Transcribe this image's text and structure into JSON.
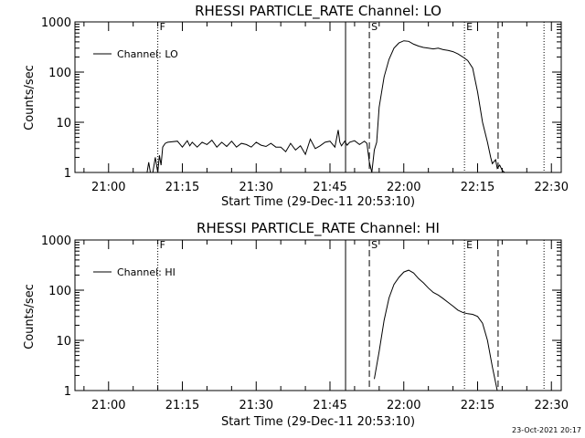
{
  "footer": {
    "timestamp": "23-Oct-2021 20:17"
  },
  "colors": {
    "line": "#000000",
    "background": "#ffffff"
  },
  "chart_data": [
    {
      "type": "line",
      "title": "RHESSI PARTICLE_RATE Channel: LO",
      "xlabel": "Start Time (29-Dec-11 20:53:10)",
      "ylabel": "Counts/sec",
      "y_scale": "log",
      "ylim": [
        1,
        1000
      ],
      "xlim": [
        "20:53:10",
        "22:32:00"
      ],
      "x_ticks": [
        "21:00",
        "21:15",
        "21:30",
        "21:45",
        "22:00",
        "22:15",
        "22:30"
      ],
      "y_ticks": [
        "1",
        "10",
        "100",
        "1000"
      ],
      "legend": {
        "position": "top-left",
        "entries": [
          "Channel: LO"
        ]
      },
      "grid": false,
      "markers": [
        {
          "label": "F",
          "time": "21:10:00",
          "style": "dotted"
        },
        {
          "label": "",
          "time": "21:48:10",
          "style": "solid"
        },
        {
          "label": "S",
          "time": "21:53:00",
          "style": "dashed"
        },
        {
          "label": "E",
          "time": "22:12:20",
          "style": "dotted"
        },
        {
          "label": "",
          "time": "22:19:10",
          "style": "dashed"
        },
        {
          "label": "",
          "time": "22:28:30",
          "style": "dotted"
        }
      ],
      "series": [
        {
          "name": "Channel: LO",
          "x": [
            "21:07:50",
            "21:08:10",
            "21:08:30",
            "21:09:00",
            "21:09:30",
            "21:10:00",
            "21:10:20",
            "21:10:40",
            "21:11:00",
            "21:11:30",
            "21:12:00",
            "21:14:00",
            "21:15:00",
            "21:16:00",
            "21:16:30",
            "21:17:00",
            "21:18:00",
            "21:19:00",
            "21:20:00",
            "21:21:00",
            "21:22:00",
            "21:23:00",
            "21:24:00",
            "21:25:00",
            "21:26:00",
            "21:27:00",
            "21:28:00",
            "21:29:00",
            "21:30:00",
            "21:31:00",
            "21:32:00",
            "21:33:00",
            "21:34:00",
            "21:35:00",
            "21:36:00",
            "21:37:00",
            "21:38:00",
            "21:39:00",
            "21:40:00",
            "21:41:00",
            "21:42:00",
            "21:43:00",
            "21:44:00",
            "21:45:00",
            "21:46:00",
            "21:46:40",
            "21:47:00",
            "21:47:20",
            "21:48:00",
            "21:48:30",
            "21:49:00",
            "21:50:00",
            "21:51:00",
            "21:52:00",
            "21:52:30",
            "21:53:00",
            "21:53:30",
            "21:54:00",
            "21:54:30",
            "21:55:00",
            "21:56:00",
            "21:57:00",
            "21:58:00",
            "21:59:00",
            "22:00:00",
            "22:01:00",
            "22:02:00",
            "22:03:00",
            "22:04:00",
            "22:05:00",
            "22:06:00",
            "22:07:00",
            "22:08:00",
            "22:09:00",
            "22:10:00",
            "22:11:00",
            "22:12:00",
            "22:13:00",
            "22:14:00",
            "22:15:00",
            "22:16:00",
            "22:17:00",
            "22:17:40",
            "22:18:00",
            "22:18:40",
            "22:19:00",
            "22:19:30",
            "22:20:00",
            "22:20:30"
          ],
          "y": [
            1,
            1.6,
            1,
            1,
            2.0,
            1,
            2.2,
            1.4,
            3.2,
            3.8,
            4,
            4.2,
            3.2,
            4.3,
            3.4,
            4,
            3.2,
            4,
            3.6,
            4.4,
            3.2,
            4,
            3.3,
            4.2,
            3.2,
            3.8,
            3.6,
            3.2,
            4,
            3.5,
            3.3,
            3.8,
            3.2,
            3.2,
            2.6,
            3.8,
            2.8,
            3.4,
            2.3,
            4.6,
            3.0,
            3.4,
            4.0,
            4.2,
            3.2,
            7,
            4,
            3.4,
            4.2,
            3.5,
            4,
            4.3,
            3.6,
            4.2,
            3.8,
            1.6,
            1,
            2.8,
            4,
            20,
            80,
            180,
            300,
            380,
            420,
            410,
            360,
            330,
            310,
            300,
            290,
            300,
            280,
            270,
            255,
            230,
            200,
            170,
            120,
            40,
            10,
            4,
            2,
            1.5,
            1.8,
            1.2,
            1.4,
            1.1,
            1
          ]
        }
      ]
    },
    {
      "type": "line",
      "title": "RHESSI PARTICLE_RATE Channel: HI",
      "xlabel": "Start Time (29-Dec-11 20:53:10)",
      "ylabel": "Counts/sec",
      "y_scale": "log",
      "ylim": [
        1,
        1000
      ],
      "xlim": [
        "20:53:10",
        "22:32:00"
      ],
      "x_ticks": [
        "21:00",
        "21:15",
        "21:30",
        "21:45",
        "22:00",
        "22:15",
        "22:30"
      ],
      "y_ticks": [
        "1",
        "10",
        "100",
        "1000"
      ],
      "legend": {
        "position": "top-left",
        "entries": [
          "Channel: HI"
        ]
      },
      "grid": false,
      "markers": [
        {
          "label": "F",
          "time": "21:10:00",
          "style": "dotted"
        },
        {
          "label": "",
          "time": "21:48:10",
          "style": "solid"
        },
        {
          "label": "S",
          "time": "21:53:00",
          "style": "dashed"
        },
        {
          "label": "E",
          "time": "22:12:20",
          "style": "dotted"
        },
        {
          "label": "",
          "time": "22:19:10",
          "style": "dashed"
        },
        {
          "label": "",
          "time": "22:28:30",
          "style": "dotted"
        }
      ],
      "series": [
        {
          "name": "Channel: HI",
          "x": [
            "21:54:00",
            "21:55:00",
            "21:56:00",
            "21:57:00",
            "21:58:00",
            "21:59:00",
            "22:00:00",
            "22:01:00",
            "22:02:00",
            "22:03:00",
            "22:04:00",
            "22:05:00",
            "22:06:00",
            "22:07:00",
            "22:08:00",
            "22:09:00",
            "22:10:00",
            "22:11:00",
            "22:12:00",
            "22:13:00",
            "22:14:00",
            "22:15:00",
            "22:16:00",
            "22:17:00",
            "22:18:00",
            "22:19:00"
          ],
          "y": [
            1.7,
            6,
            25,
            70,
            130,
            180,
            230,
            250,
            220,
            170,
            140,
            110,
            90,
            80,
            68,
            57,
            48,
            40,
            36,
            34,
            33,
            30,
            22,
            10,
            3,
            1
          ]
        }
      ]
    }
  ]
}
